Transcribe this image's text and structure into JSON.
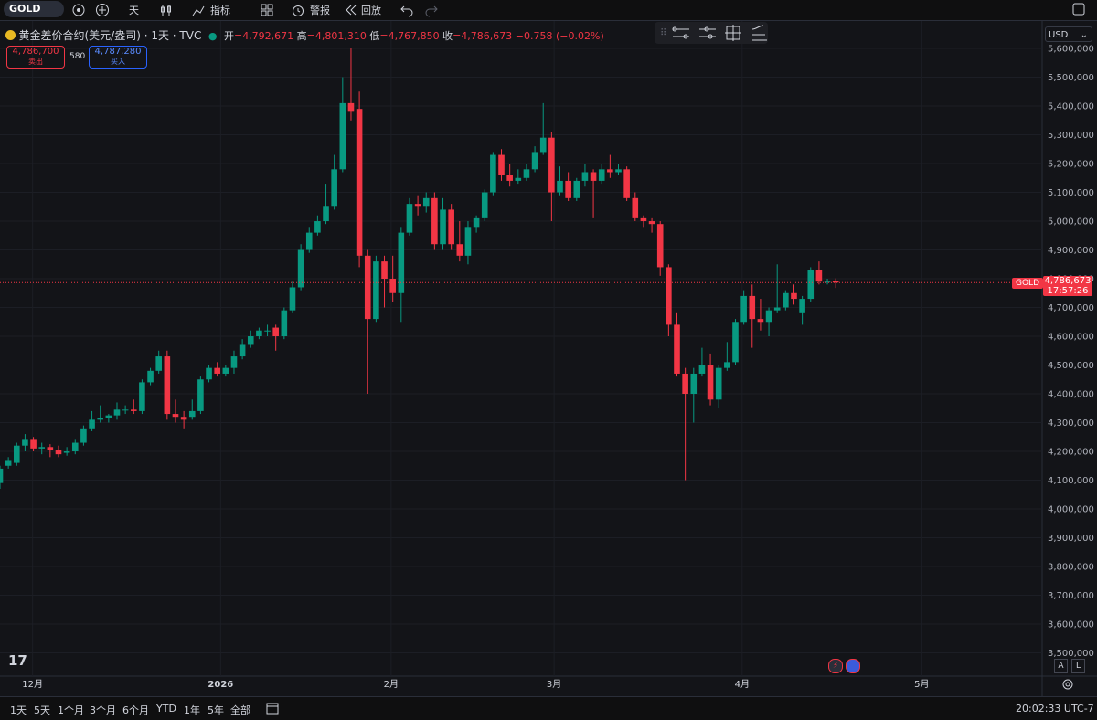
{
  "ui": {
    "toolbar": {
      "symbol": "GOLD",
      "interval": "天",
      "indicators": "指标",
      "alerts": "警报",
      "replay": "回放"
    },
    "legend": {
      "title": "黄金差价合约(美元/盎司) · 1天 · TVC",
      "open_label": "开",
      "open": "4,792,671",
      "high_label": "高",
      "high": "4,801,310",
      "low_label": "低",
      "low": "4,767,850",
      "close_label": "收",
      "close": "4,786,673",
      "change": "−0.758 (−0.02%)"
    },
    "trade": {
      "sell_price": "4,786,700",
      "sell_label": "卖出",
      "spread": "580",
      "buy_price": "4,787,280",
      "buy_label": "买入"
    },
    "currency": "USD",
    "price_tag": {
      "symbol": "GOLD",
      "price": "4,786,673",
      "countdown": "17:57:26"
    },
    "scale_buttons": [
      "A",
      "L"
    ],
    "ranges": [
      "1天",
      "5天",
      "1个月",
      "3个月",
      "6个月",
      "YTD",
      "1年",
      "5年",
      "全部"
    ],
    "clock": "20:02:33 UTC-7"
  },
  "chart_data": {
    "type": "candlestick",
    "up_color": "#089981",
    "down_color": "#f23645",
    "grid": true,
    "xlim": [
      0,
      124.7
    ],
    "xticks": [
      {
        "value": 3.9,
        "label": "12月"
      },
      {
        "value": 26.4,
        "label": "2026"
      },
      {
        "value": 46.8,
        "label": "2月"
      },
      {
        "value": 66.3,
        "label": "3月"
      },
      {
        "value": 88.8,
        "label": "4月"
      },
      {
        "value": 110.3,
        "label": "5月"
      }
    ],
    "ylim": [
      3419000,
      5616000
    ],
    "yticks": [
      {
        "value": 5600000,
        "label": "5,600,000"
      },
      {
        "value": 5500000,
        "label": "5,500,000"
      },
      {
        "value": 5400000,
        "label": "5,400,000"
      },
      {
        "value": 5300000,
        "label": "5,300,000"
      },
      {
        "value": 5200000,
        "label": "5,200,000"
      },
      {
        "value": 5100000,
        "label": "5,100,000"
      },
      {
        "value": 5000000,
        "label": "5,000,000"
      },
      {
        "value": 4900000,
        "label": "4,900,000"
      },
      {
        "value": 4800000,
        "label": "4,800,000"
      },
      {
        "value": 4700000,
        "label": "4,700,000"
      },
      {
        "value": 4600000,
        "label": "4,600,000"
      },
      {
        "value": 4500000,
        "label": "4,500,000"
      },
      {
        "value": 4400000,
        "label": "4,400,000"
      },
      {
        "value": 4300000,
        "label": "4,300,000"
      },
      {
        "value": 4200000,
        "label": "4,200,000"
      },
      {
        "value": 4100000,
        "label": "4,100,000"
      },
      {
        "value": 4000000,
        "label": "4,000,000"
      },
      {
        "value": 3900000,
        "label": "3,900,000"
      },
      {
        "value": 3800000,
        "label": "3,800,000"
      },
      {
        "value": 3700000,
        "label": "3,700,000"
      },
      {
        "value": 3600000,
        "label": "3,600,000"
      },
      {
        "value": 3500000,
        "label": "3,500,000"
      }
    ],
    "open": [
      4090000,
      4150000,
      4160000,
      4220000,
      4240000,
      4210000,
      4215000,
      4205000,
      4195000,
      4200000,
      4230000,
      4280000,
      4310000,
      4315000,
      4325000,
      4345000,
      4345000,
      4340000,
      4440000,
      4480000,
      4530000,
      4330000,
      4320000,
      4320000,
      4340000,
      4450000,
      4490000,
      4470000,
      4490000,
      4530000,
      4570000,
      4600000,
      4620000,
      4630000,
      4600000,
      4690000,
      4770000,
      4900000,
      4960000,
      5000000,
      5050000,
      5180000,
      5410000,
      5390000,
      4880000,
      4660000,
      4860000,
      4800000,
      4750000,
      4960000,
      5060000,
      5050000,
      5080000,
      4920000,
      5040000,
      4920000,
      4880000,
      4980000,
      5010000,
      5100000,
      5230000,
      5160000,
      5140000,
      5150000,
      5180000,
      5240000,
      5290000,
      5100000,
      5140000,
      5080000,
      5140000,
      5170000,
      5140000,
      5180000,
      5170000,
      5180000,
      5080000,
      5010000,
      5000000,
      4990000,
      4840000,
      4640000,
      4470000,
      4400000,
      4470000,
      4500000,
      4380000,
      4490000,
      4510000,
      4650000,
      4740000,
      4660000,
      4650000,
      4690000,
      4700000,
      4750000,
      4680000,
      4730000,
      4830000,
      4790000,
      4792671
    ],
    "high": [
      4150000,
      4180000,
      4230000,
      4260000,
      4250000,
      4230000,
      4225000,
      4220000,
      4215000,
      4240000,
      4290000,
      4340000,
      4360000,
      4330000,
      4370000,
      4360000,
      4380000,
      4450000,
      4490000,
      4550000,
      4550000,
      4380000,
      4340000,
      4380000,
      4460000,
      4500000,
      4510000,
      4500000,
      4550000,
      4590000,
      4620000,
      4630000,
      4640000,
      4640000,
      4700000,
      4790000,
      4920000,
      4980000,
      5020000,
      5130000,
      5230000,
      5500000,
      5600000,
      5450000,
      4900000,
      4880000,
      4880000,
      4880000,
      4980000,
      5080000,
      5090000,
      5100000,
      5100000,
      5080000,
      5060000,
      5000000,
      5000000,
      5020000,
      5110000,
      5240000,
      5250000,
      5200000,
      5180000,
      5200000,
      5260000,
      5410000,
      5310000,
      5190000,
      5170000,
      5150000,
      5200000,
      5180000,
      5200000,
      5230000,
      5200000,
      5190000,
      5100000,
      5020000,
      5010000,
      5000000,
      4850000,
      4680000,
      4490000,
      4490000,
      4560000,
      4540000,
      4500000,
      4580000,
      4660000,
      4760000,
      4780000,
      4730000,
      4700000,
      4850000,
      4760000,
      4780000,
      4740000,
      4840000,
      4860000,
      4800000,
      4801310
    ],
    "low": [
      4070000,
      4140000,
      4150000,
      4200000,
      4200000,
      4190000,
      4180000,
      4180000,
      4185000,
      4190000,
      4220000,
      4270000,
      4300000,
      4300000,
      4310000,
      4330000,
      4330000,
      4330000,
      4430000,
      4470000,
      4310000,
      4300000,
      4280000,
      4310000,
      4330000,
      4440000,
      4460000,
      4460000,
      4470000,
      4520000,
      4560000,
      4590000,
      4600000,
      4550000,
      4590000,
      4680000,
      4760000,
      4890000,
      4950000,
      4990000,
      5040000,
      5170000,
      5350000,
      4840000,
      4400000,
      4650000,
      4700000,
      4720000,
      4650000,
      4950000,
      5020000,
      5030000,
      4900000,
      4900000,
      4900000,
      4860000,
      4850000,
      4960000,
      5000000,
      5090000,
      5140000,
      5120000,
      5130000,
      5140000,
      5170000,
      5230000,
      5000000,
      5090000,
      5070000,
      5070000,
      5120000,
      5010000,
      5130000,
      5150000,
      5160000,
      5070000,
      5000000,
      4980000,
      4960000,
      4810000,
      4600000,
      4460000,
      4100000,
      4300000,
      4460000,
      4360000,
      4350000,
      4480000,
      4500000,
      4640000,
      4560000,
      4620000,
      4600000,
      4680000,
      4690000,
      4710000,
      4640000,
      4720000,
      4780000,
      4780000,
      4767850
    ],
    "close": [
      4140000,
      4170000,
      4220000,
      4240000,
      4210000,
      4215000,
      4205000,
      4190000,
      4200000,
      4230000,
      4280000,
      4310000,
      4315000,
      4325000,
      4345000,
      4345000,
      4340000,
      4440000,
      4480000,
      4530000,
      4330000,
      4320000,
      4310000,
      4340000,
      4450000,
      4490000,
      4470000,
      4490000,
      4530000,
      4570000,
      4600000,
      4620000,
      4620000,
      4600000,
      4690000,
      4770000,
      4900000,
      4960000,
      5000000,
      5050000,
      5180000,
      5410000,
      5380000,
      4880000,
      4660000,
      4860000,
      4800000,
      4750000,
      4960000,
      5060000,
      5050000,
      5080000,
      4920000,
      5040000,
      4920000,
      4880000,
      4980000,
      5010000,
      5100000,
      5230000,
      5160000,
      5140000,
      5150000,
      5180000,
      5240000,
      5290000,
      5100000,
      5140000,
      5080000,
      5140000,
      5170000,
      5140000,
      5180000,
      5170000,
      5180000,
      5080000,
      5010000,
      5000000,
      4990000,
      4840000,
      4640000,
      4470000,
      4400000,
      4470000,
      4500000,
      4380000,
      4490000,
      4510000,
      4650000,
      4740000,
      4660000,
      4650000,
      4690000,
      4700000,
      4750000,
      4730000,
      4730000,
      4830000,
      4790000,
      4790000,
      4786673
    ]
  }
}
